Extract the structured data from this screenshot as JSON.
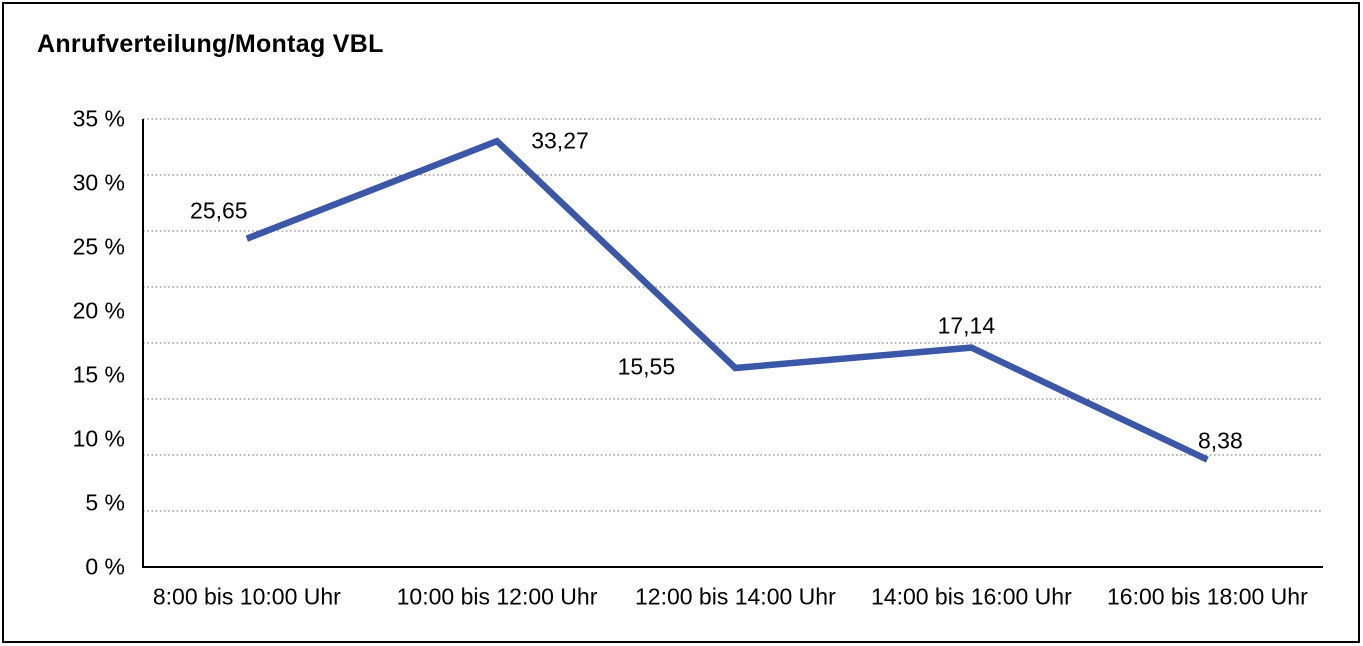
{
  "title": "Anrufverteilung/Montag VBL",
  "chart_data": {
    "type": "line",
    "title": "Anrufverteilung/Montag VBL",
    "categories": [
      "8:00 bis 10:00 Uhr",
      "10:00 bis 12:00 Uhr",
      "12:00 bis 14:00 Uhr",
      "14:00 bis 16:00 Uhr",
      "16:00 bis 18:00 Uhr"
    ],
    "values": [
      25.65,
      33.27,
      15.55,
      17.14,
      8.38
    ],
    "point_labels": [
      "25,65",
      "33,27",
      "15,55",
      "17,14",
      "8,38"
    ],
    "y_ticks": [
      "0 %",
      "5 %",
      "10 %",
      "15 %",
      "20 %",
      "25 %",
      "30 %",
      "35 %"
    ],
    "ylim": [
      0,
      35
    ],
    "grid": "horizontal-dotted",
    "legend_position": "none",
    "line_color": "#3A58A7",
    "axis_color": "#000000",
    "gridline_color": "#6E6E6E",
    "background": "#FFFFFF",
    "frame_color": "#000000"
  }
}
